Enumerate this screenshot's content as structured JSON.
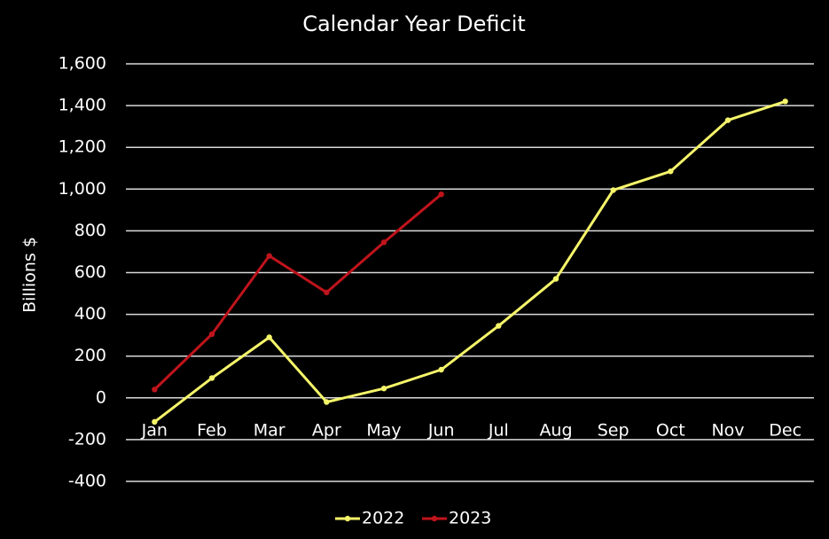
{
  "chart_data": {
    "type": "line",
    "title": "Calendar Year Deficit",
    "y_label": "Billions $",
    "categories": [
      "Jan",
      "Feb",
      "Mar",
      "Apr",
      "May",
      "Jun",
      "Jul",
      "Aug",
      "Sep",
      "Oct",
      "Nov",
      "Dec"
    ],
    "series": [
      {
        "name": "2022",
        "color": "#f5f56a",
        "values": [
          -115,
          95,
          290,
          -20,
          45,
          135,
          345,
          570,
          995,
          1085,
          1330,
          1420
        ]
      },
      {
        "name": "2023",
        "color": "#c0141c",
        "values": [
          40,
          305,
          680,
          505,
          745,
          975,
          null,
          null,
          null,
          null,
          null,
          null
        ]
      }
    ],
    "ylim": [
      -400,
      1600
    ],
    "yticks": [
      -400,
      -200,
      0,
      200,
      400,
      600,
      800,
      {
        "value": 1000,
        "label": "1,000"
      },
      {
        "value": 1200,
        "label": "1,200"
      },
      {
        "value": 1400,
        "label": "1,400"
      },
      {
        "value": 1600,
        "label": "1,600"
      }
    ],
    "grid": true,
    "legend": "bottom"
  }
}
